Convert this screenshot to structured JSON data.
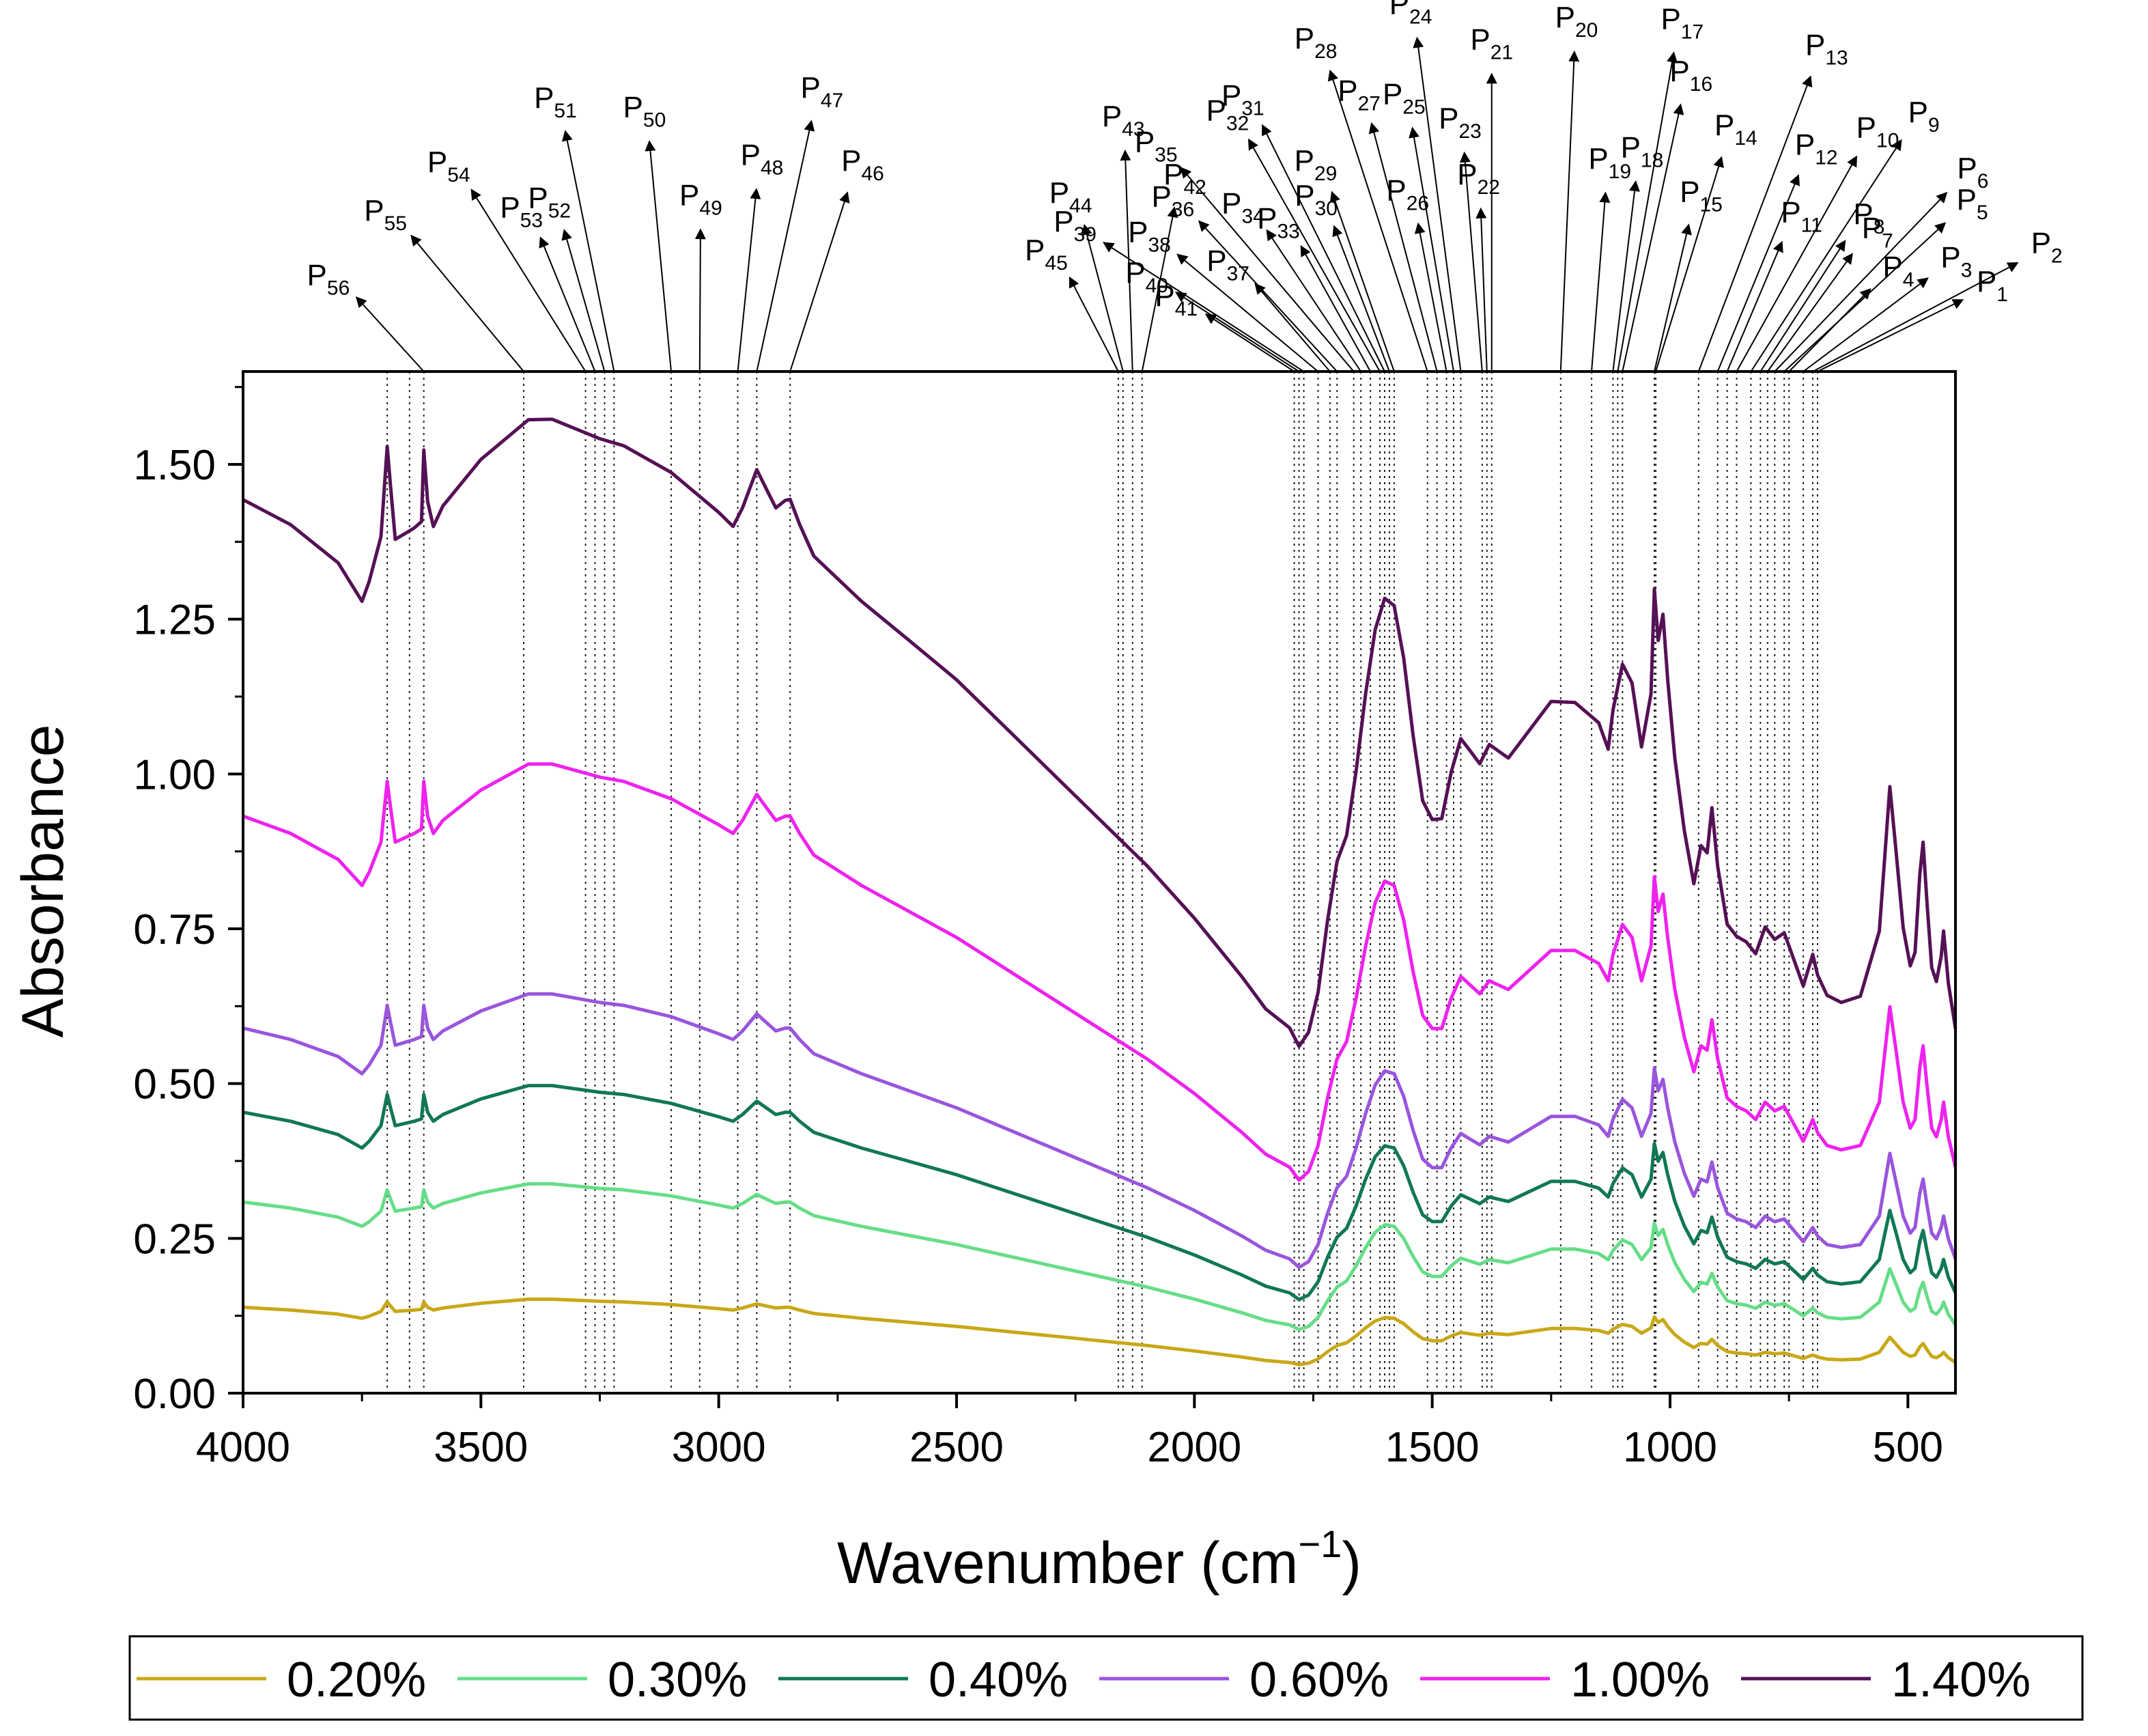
{
  "chart_data": {
    "type": "line",
    "title": "",
    "xlabel": "Wavenumber (cm",
    "xlabel_sup": "−1",
    "xlabel_close": ")",
    "ylabel": "Absorbance",
    "xlim": [
      4000,
      400
    ],
    "ylim": [
      0,
      1.65
    ],
    "x_ticks": [
      4000,
      3500,
      3000,
      2500,
      2000,
      1500,
      1000,
      500
    ],
    "x_tick_labels": [
      "4000",
      "3500",
      "3000",
      "2500",
      "2000",
      "1500",
      "1000",
      "500"
    ],
    "y_ticks": [
      0,
      0.25,
      0.5,
      0.75,
      1.0,
      1.25,
      1.5
    ],
    "y_tick_labels": [
      "0.00",
      "0.25",
      "0.50",
      "0.75",
      "1.00",
      "1.25",
      "1.50"
    ],
    "legend_position": "bottom",
    "series": [
      {
        "name": "0.20%",
        "color": "#C8A818",
        "scale": 0.22,
        "offset": 0.0
      },
      {
        "name": "0.30%",
        "color": "#66DD88",
        "scale": 0.49,
        "offset": 0.0
      },
      {
        "name": "0.40%",
        "color": "#117755",
        "scale": 0.72,
        "offset": 0.0
      },
      {
        "name": "0.60%",
        "color": "#9955DD",
        "scale": 0.92,
        "offset": 0.01
      },
      {
        "name": "1.00%",
        "color": "#EE22EE",
        "scale": 1.4,
        "offset": 0.05
      },
      {
        "name": "1.40%",
        "color": "#551155",
        "scale": 2.1,
        "offset": 0.12
      }
    ],
    "base_profile": [
      [
        4000,
        0.63
      ],
      [
        3900,
        0.61
      ],
      [
        3800,
        0.58
      ],
      [
        3750,
        0.55
      ],
      [
        3735,
        0.565
      ],
      [
        3710,
        0.6
      ],
      [
        3697,
        0.67
      ],
      [
        3690,
        0.64
      ],
      [
        3680,
        0.6
      ],
      [
        3660,
        0.605
      ],
      [
        3640,
        0.61
      ],
      [
        3625,
        0.615
      ],
      [
        3620,
        0.67
      ],
      [
        3612,
        0.63
      ],
      [
        3600,
        0.61
      ],
      [
        3580,
        0.625
      ],
      [
        3500,
        0.66
      ],
      [
        3400,
        0.69
      ],
      [
        3350,
        0.69
      ],
      [
        3250,
        0.675
      ],
      [
        3200,
        0.67
      ],
      [
        3100,
        0.65
      ],
      [
        3000,
        0.62
      ],
      [
        2970,
        0.61
      ],
      [
        2950,
        0.625
      ],
      [
        2930,
        0.645
      ],
      [
        2920,
        0.655
      ],
      [
        2900,
        0.64
      ],
      [
        2880,
        0.625
      ],
      [
        2860,
        0.63
      ],
      [
        2850,
        0.63
      ],
      [
        2830,
        0.61
      ],
      [
        2800,
        0.585
      ],
      [
        2700,
        0.55
      ],
      [
        2600,
        0.52
      ],
      [
        2500,
        0.49
      ],
      [
        2400,
        0.455
      ],
      [
        2300,
        0.42
      ],
      [
        2200,
        0.385
      ],
      [
        2100,
        0.35
      ],
      [
        2000,
        0.31
      ],
      [
        1900,
        0.265
      ],
      [
        1850,
        0.24
      ],
      [
        1800,
        0.225
      ],
      [
        1780,
        0.21
      ],
      [
        1760,
        0.22
      ],
      [
        1740,
        0.25
      ],
      [
        1720,
        0.305
      ],
      [
        1700,
        0.35
      ],
      [
        1680,
        0.37
      ],
      [
        1660,
        0.42
      ],
      [
        1640,
        0.48
      ],
      [
        1620,
        0.53
      ],
      [
        1600,
        0.555
      ],
      [
        1580,
        0.55
      ],
      [
        1560,
        0.51
      ],
      [
        1540,
        0.45
      ],
      [
        1520,
        0.4
      ],
      [
        1500,
        0.385
      ],
      [
        1480,
        0.385
      ],
      [
        1460,
        0.42
      ],
      [
        1440,
        0.445
      ],
      [
        1420,
        0.435
      ],
      [
        1400,
        0.425
      ],
      [
        1380,
        0.44
      ],
      [
        1340,
        0.43
      ],
      [
        1300,
        0.45
      ],
      [
        1250,
        0.475
      ],
      [
        1200,
        0.475
      ],
      [
        1150,
        0.46
      ],
      [
        1130,
        0.44
      ],
      [
        1120,
        0.47
      ],
      [
        1100,
        0.505
      ],
      [
        1080,
        0.49
      ],
      [
        1060,
        0.44
      ],
      [
        1040,
        0.48
      ],
      [
        1033,
        0.56
      ],
      [
        1025,
        0.52
      ],
      [
        1015,
        0.54
      ],
      [
        1005,
        0.49
      ],
      [
        990,
        0.43
      ],
      [
        970,
        0.375
      ],
      [
        950,
        0.335
      ],
      [
        935,
        0.365
      ],
      [
        922,
        0.36
      ],
      [
        912,
        0.395
      ],
      [
        900,
        0.35
      ],
      [
        880,
        0.305
      ],
      [
        860,
        0.295
      ],
      [
        840,
        0.29
      ],
      [
        820,
        0.28
      ],
      [
        800,
        0.3
      ],
      [
        780,
        0.29
      ],
      [
        760,
        0.295
      ],
      [
        740,
        0.275
      ],
      [
        720,
        0.255
      ],
      [
        700,
        0.28
      ],
      [
        690,
        0.265
      ],
      [
        670,
        0.25
      ],
      [
        640,
        0.245
      ],
      [
        600,
        0.25
      ],
      [
        560,
        0.3
      ],
      [
        545,
        0.375
      ],
      [
        538,
        0.41
      ],
      [
        525,
        0.36
      ],
      [
        510,
        0.3
      ],
      [
        495,
        0.27
      ],
      [
        485,
        0.28
      ],
      [
        475,
        0.34
      ],
      [
        468,
        0.365
      ],
      [
        460,
        0.32
      ],
      [
        450,
        0.27
      ],
      [
        440,
        0.26
      ],
      [
        430,
        0.28
      ],
      [
        425,
        0.3
      ],
      [
        415,
        0.26
      ],
      [
        400,
        0.225
      ]
    ],
    "peaks": [
      {
        "label": "P",
        "num": "1",
        "x": 690
      },
      {
        "label": "P",
        "num": "2",
        "x": 700
      },
      {
        "label": "P",
        "num": "3",
        "x": 720
      },
      {
        "label": "P",
        "num": "4",
        "x": 750
      },
      {
        "label": "P",
        "num": "5",
        "x": 760
      },
      {
        "label": "P",
        "num": "6",
        "x": 780
      },
      {
        "label": "P",
        "num": "7",
        "x": 795
      },
      {
        "label": "P",
        "num": "8",
        "x": 810
      },
      {
        "label": "P",
        "num": "9",
        "x": 830
      },
      {
        "label": "P",
        "num": "10",
        "x": 860
      },
      {
        "label": "P",
        "num": "11",
        "x": 880
      },
      {
        "label": "P",
        "num": "12",
        "x": 900
      },
      {
        "label": "P",
        "num": "13",
        "x": 940
      },
      {
        "label": "P",
        "num": "14",
        "x": 1030
      },
      {
        "label": "P",
        "num": "15",
        "x": 1033
      },
      {
        "label": "P",
        "num": "16",
        "x": 1100
      },
      {
        "label": "P",
        "num": "17",
        "x": 1110
      },
      {
        "label": "P",
        "num": "18",
        "x": 1120
      },
      {
        "label": "P",
        "num": "19",
        "x": 1165
      },
      {
        "label": "P",
        "num": "20",
        "x": 1230
      },
      {
        "label": "P",
        "num": "21",
        "x": 1375
      },
      {
        "label": "P",
        "num": "22",
        "x": 1385
      },
      {
        "label": "P",
        "num": "23",
        "x": 1395
      },
      {
        "label": "P",
        "num": "24",
        "x": 1440
      },
      {
        "label": "P",
        "num": "25",
        "x": 1455
      },
      {
        "label": "P",
        "num": "26",
        "x": 1470
      },
      {
        "label": "P",
        "num": "27",
        "x": 1490
      },
      {
        "label": "P",
        "num": "28",
        "x": 1510
      },
      {
        "label": "P",
        "num": "29",
        "x": 1580
      },
      {
        "label": "P",
        "num": "30",
        "x": 1590
      },
      {
        "label": "P",
        "num": "31",
        "x": 1600
      },
      {
        "label": "P",
        "num": "32",
        "x": 1610
      },
      {
        "label": "P",
        "num": "33",
        "x": 1630
      },
      {
        "label": "P",
        "num": "34",
        "x": 1650
      },
      {
        "label": "P",
        "num": "35",
        "x": 1665
      },
      {
        "label": "P",
        "num": "36",
        "x": 1700
      },
      {
        "label": "P",
        "num": "37",
        "x": 1715
      },
      {
        "label": "P",
        "num": "38",
        "x": 1740
      },
      {
        "label": "P",
        "num": "39",
        "x": 1770
      },
      {
        "label": "P",
        "num": "40",
        "x": 1780
      },
      {
        "label": "P",
        "num": "41",
        "x": 1790
      },
      {
        "label": "P",
        "num": "42",
        "x": 2110
      },
      {
        "label": "P",
        "num": "43",
        "x": 2130
      },
      {
        "label": "P",
        "num": "44",
        "x": 2150
      },
      {
        "label": "P",
        "num": "45",
        "x": 2160
      },
      {
        "label": "P",
        "num": "46",
        "x": 2850
      },
      {
        "label": "P",
        "num": "47",
        "x": 2920
      },
      {
        "label": "P",
        "num": "48",
        "x": 2960
      },
      {
        "label": "P",
        "num": "49",
        "x": 3040
      },
      {
        "label": "P",
        "num": "50",
        "x": 3100
      },
      {
        "label": "P",
        "num": "51",
        "x": 3220
      },
      {
        "label": "P",
        "num": "52",
        "x": 3240
      },
      {
        "label": "P",
        "num": "53",
        "x": 3260
      },
      {
        "label": "P",
        "num": "54",
        "x": 3280
      },
      {
        "label": "P",
        "num": "55",
        "x": 3410
      },
      {
        "label": "P",
        "num": "56",
        "x": 3620
      },
      {
        "x": 3650
      },
      {
        "x": 3697
      }
    ]
  }
}
